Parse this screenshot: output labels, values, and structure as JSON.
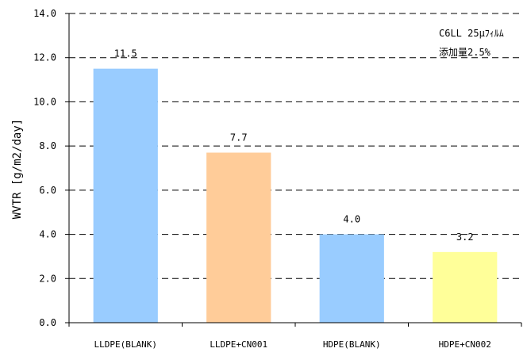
{
  "chart_data": {
    "type": "bar",
    "categories": [
      "LLDPE(BLANK)",
      "LLDPE+CN001",
      "HDPE(BLANK)",
      "HDPE+CN002"
    ],
    "values": [
      11.5,
      7.7,
      4.0,
      3.2
    ],
    "value_labels": [
      "11.5",
      "7.7",
      "4.0",
      "3.2"
    ],
    "bar_colors": [
      "#99ccff",
      "#ffcc99",
      "#99ccff",
      "#ffff99"
    ],
    "title": "",
    "xlabel": "",
    "ylabel": "WVTR [g/m2/day]",
    "ylim": [
      0,
      14
    ],
    "yticks": [
      0,
      2,
      4,
      6,
      8,
      10,
      12,
      14
    ],
    "ytick_labels": [
      "0.0",
      "2.0",
      "4.0",
      "6.0",
      "8.0",
      "10.0",
      "12.0",
      "14.0"
    ],
    "grid": "horizontal dashed",
    "annotations": [
      "C6LL 25μﾌｨﾙﾑ",
      "添加量2.5%"
    ]
  }
}
